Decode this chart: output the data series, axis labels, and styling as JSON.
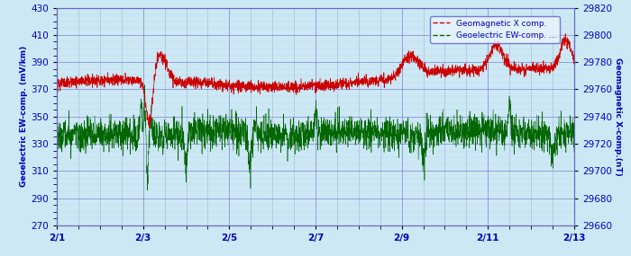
{
  "ylabel_left": "Geoelectric EW-comp. (mV/km)",
  "ylabel_right": "Geomagnetic X-comp.(nT)",
  "ylim_left": [
    270,
    430
  ],
  "ylim_right": [
    29660,
    29820
  ],
  "yticks_left": [
    270,
    290,
    310,
    330,
    350,
    370,
    390,
    410,
    430
  ],
  "yticks_right": [
    29660,
    29680,
    29700,
    29720,
    29740,
    29760,
    29780,
    29800,
    29820
  ],
  "xtick_labels": [
    "2/1",
    "2/3",
    "2/5",
    "2/7",
    "2/9",
    "2/11",
    "2/13"
  ],
  "xtick_positions": [
    0,
    2,
    4,
    6,
    8,
    10,
    12
  ],
  "xlim": [
    0,
    12
  ],
  "legend_geo_mag": "Geomagnetic X comp.",
  "legend_geo_elec": "Geoelectric EW-comp. ...",
  "color_mag": "#cc0000",
  "color_elec": "#006600",
  "color_text": "#0000bb",
  "color_bg": "#cce8f4",
  "color_grid_major": "#6666cc",
  "color_grid_minor": "#99bbee",
  "n_points": 2880,
  "seed": 99
}
